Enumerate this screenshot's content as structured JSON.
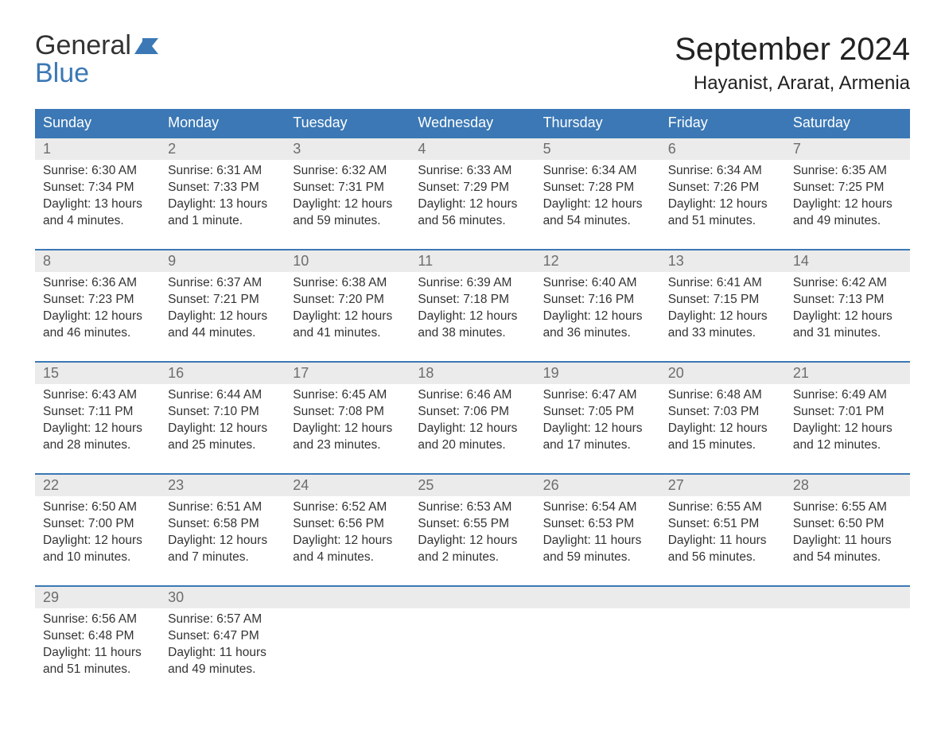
{
  "logo": {
    "top": "General",
    "bottom": "Blue",
    "accent": "#3b78b5",
    "textColor": "#333333"
  },
  "title": "September 2024",
  "location": "Hayanist, Ararat, Armenia",
  "weekdays": [
    "Sunday",
    "Monday",
    "Tuesday",
    "Wednesday",
    "Thursday",
    "Friday",
    "Saturday"
  ],
  "colors": {
    "headerBg": "#3b78b5",
    "headerText": "#ffffff",
    "dayNumBg": "#ebebeb",
    "dayNumText": "#6d6d6d",
    "bodyText": "#333333",
    "rowDivider": "#3b78b5",
    "pageBg": "#ffffff"
  },
  "typography": {
    "titleFontSize": 40,
    "locationFontSize": 24,
    "weekdayFontSize": 18,
    "dayNumFontSize": 18,
    "bodyFontSize": 15.5
  },
  "grid": {
    "columns": 7,
    "rows": 5
  },
  "days": [
    {
      "n": 1,
      "sunrise": "6:30 AM",
      "sunset": "7:34 PM",
      "daylight": "13 hours and 4 minutes."
    },
    {
      "n": 2,
      "sunrise": "6:31 AM",
      "sunset": "7:33 PM",
      "daylight": "13 hours and 1 minute."
    },
    {
      "n": 3,
      "sunrise": "6:32 AM",
      "sunset": "7:31 PM",
      "daylight": "12 hours and 59 minutes."
    },
    {
      "n": 4,
      "sunrise": "6:33 AM",
      "sunset": "7:29 PM",
      "daylight": "12 hours and 56 minutes."
    },
    {
      "n": 5,
      "sunrise": "6:34 AM",
      "sunset": "7:28 PM",
      "daylight": "12 hours and 54 minutes."
    },
    {
      "n": 6,
      "sunrise": "6:34 AM",
      "sunset": "7:26 PM",
      "daylight": "12 hours and 51 minutes."
    },
    {
      "n": 7,
      "sunrise": "6:35 AM",
      "sunset": "7:25 PM",
      "daylight": "12 hours and 49 minutes."
    },
    {
      "n": 8,
      "sunrise": "6:36 AM",
      "sunset": "7:23 PM",
      "daylight": "12 hours and 46 minutes."
    },
    {
      "n": 9,
      "sunrise": "6:37 AM",
      "sunset": "7:21 PM",
      "daylight": "12 hours and 44 minutes."
    },
    {
      "n": 10,
      "sunrise": "6:38 AM",
      "sunset": "7:20 PM",
      "daylight": "12 hours and 41 minutes."
    },
    {
      "n": 11,
      "sunrise": "6:39 AM",
      "sunset": "7:18 PM",
      "daylight": "12 hours and 38 minutes."
    },
    {
      "n": 12,
      "sunrise": "6:40 AM",
      "sunset": "7:16 PM",
      "daylight": "12 hours and 36 minutes."
    },
    {
      "n": 13,
      "sunrise": "6:41 AM",
      "sunset": "7:15 PM",
      "daylight": "12 hours and 33 minutes."
    },
    {
      "n": 14,
      "sunrise": "6:42 AM",
      "sunset": "7:13 PM",
      "daylight": "12 hours and 31 minutes."
    },
    {
      "n": 15,
      "sunrise": "6:43 AM",
      "sunset": "7:11 PM",
      "daylight": "12 hours and 28 minutes."
    },
    {
      "n": 16,
      "sunrise": "6:44 AM",
      "sunset": "7:10 PM",
      "daylight": "12 hours and 25 minutes."
    },
    {
      "n": 17,
      "sunrise": "6:45 AM",
      "sunset": "7:08 PM",
      "daylight": "12 hours and 23 minutes."
    },
    {
      "n": 18,
      "sunrise": "6:46 AM",
      "sunset": "7:06 PM",
      "daylight": "12 hours and 20 minutes."
    },
    {
      "n": 19,
      "sunrise": "6:47 AM",
      "sunset": "7:05 PM",
      "daylight": "12 hours and 17 minutes."
    },
    {
      "n": 20,
      "sunrise": "6:48 AM",
      "sunset": "7:03 PM",
      "daylight": "12 hours and 15 minutes."
    },
    {
      "n": 21,
      "sunrise": "6:49 AM",
      "sunset": "7:01 PM",
      "daylight": "12 hours and 12 minutes."
    },
    {
      "n": 22,
      "sunrise": "6:50 AM",
      "sunset": "7:00 PM",
      "daylight": "12 hours and 10 minutes."
    },
    {
      "n": 23,
      "sunrise": "6:51 AM",
      "sunset": "6:58 PM",
      "daylight": "12 hours and 7 minutes."
    },
    {
      "n": 24,
      "sunrise": "6:52 AM",
      "sunset": "6:56 PM",
      "daylight": "12 hours and 4 minutes."
    },
    {
      "n": 25,
      "sunrise": "6:53 AM",
      "sunset": "6:55 PM",
      "daylight": "12 hours and 2 minutes."
    },
    {
      "n": 26,
      "sunrise": "6:54 AM",
      "sunset": "6:53 PM",
      "daylight": "11 hours and 59 minutes."
    },
    {
      "n": 27,
      "sunrise": "6:55 AM",
      "sunset": "6:51 PM",
      "daylight": "11 hours and 56 minutes."
    },
    {
      "n": 28,
      "sunrise": "6:55 AM",
      "sunset": "6:50 PM",
      "daylight": "11 hours and 54 minutes."
    },
    {
      "n": 29,
      "sunrise": "6:56 AM",
      "sunset": "6:48 PM",
      "daylight": "11 hours and 51 minutes."
    },
    {
      "n": 30,
      "sunrise": "6:57 AM",
      "sunset": "6:47 PM",
      "daylight": "11 hours and 49 minutes."
    }
  ],
  "labels": {
    "sunrise": "Sunrise: ",
    "sunset": "Sunset: ",
    "daylight": "Daylight: "
  }
}
